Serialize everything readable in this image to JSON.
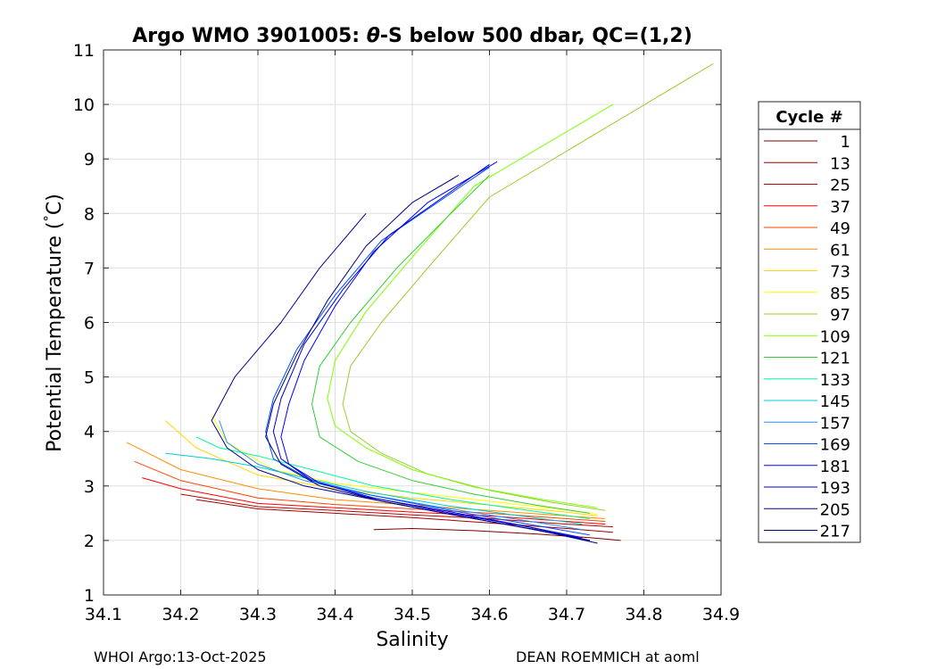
{
  "chart_data": {
    "type": "line",
    "title_prefix": "Argo WMO 3901005: ",
    "title_theta": "θ",
    "title_suffix": "-S below 500 dbar,  QC=(1,2)",
    "xlabel": "Salinity",
    "ylabel_main": "Potential Temperature (",
    "ylabel_deg": "°",
    "ylabel_end": "C)",
    "xlim": [
      34.1,
      34.9
    ],
    "ylim": [
      1,
      11
    ],
    "xticks": [
      34.1,
      34.2,
      34.3,
      34.4,
      34.5,
      34.6,
      34.7,
      34.8,
      34.9
    ],
    "xtick_labels": [
      "34.1",
      "34.2",
      "34.3",
      "34.4",
      "34.5",
      "34.6",
      "34.7",
      "34.8",
      "34.9"
    ],
    "yticks": [
      1,
      2,
      3,
      4,
      5,
      6,
      7,
      8,
      9,
      10,
      11
    ],
    "ytick_labels": [
      "1",
      "2",
      "3",
      "4",
      "5",
      "6",
      "7",
      "8",
      "9",
      "10",
      "11"
    ],
    "grid": true,
    "legend_position": "right",
    "legend_title": "Cycle #",
    "series": [
      {
        "name": "1",
        "color": "#800000",
        "points": [
          [
            34.77,
            2.0
          ],
          [
            34.73,
            2.05
          ],
          [
            34.66,
            2.12
          ],
          [
            34.58,
            2.18
          ],
          [
            34.5,
            2.22
          ],
          [
            34.45,
            2.2
          ]
        ]
      },
      {
        "name": "13",
        "color": "#a00000",
        "points": [
          [
            34.76,
            2.15
          ],
          [
            34.7,
            2.22
          ],
          [
            34.6,
            2.32
          ],
          [
            34.5,
            2.42
          ],
          [
            34.4,
            2.5
          ],
          [
            34.3,
            2.58
          ],
          [
            34.22,
            2.75
          ]
        ]
      },
      {
        "name": "25",
        "color": "#c00000",
        "points": [
          [
            34.76,
            2.25
          ],
          [
            34.7,
            2.3
          ],
          [
            34.6,
            2.4
          ],
          [
            34.5,
            2.47
          ],
          [
            34.4,
            2.55
          ],
          [
            34.3,
            2.62
          ],
          [
            34.2,
            2.85
          ]
        ]
      },
      {
        "name": "37",
        "color": "#ff0000",
        "points": [
          [
            34.75,
            2.3
          ],
          [
            34.7,
            2.35
          ],
          [
            34.6,
            2.45
          ],
          [
            34.5,
            2.52
          ],
          [
            34.4,
            2.6
          ],
          [
            34.3,
            2.68
          ],
          [
            34.2,
            2.95
          ],
          [
            34.15,
            3.15
          ]
        ]
      },
      {
        "name": "49",
        "color": "#ff4500",
        "points": [
          [
            34.75,
            2.35
          ],
          [
            34.7,
            2.4
          ],
          [
            34.6,
            2.5
          ],
          [
            34.5,
            2.58
          ],
          [
            34.4,
            2.66
          ],
          [
            34.3,
            2.78
          ],
          [
            34.2,
            3.1
          ],
          [
            34.14,
            3.45
          ]
        ]
      },
      {
        "name": "61",
        "color": "#ff8c00",
        "points": [
          [
            34.75,
            2.4
          ],
          [
            34.7,
            2.45
          ],
          [
            34.6,
            2.55
          ],
          [
            34.5,
            2.65
          ],
          [
            34.4,
            2.75
          ],
          [
            34.3,
            2.95
          ],
          [
            34.2,
            3.3
          ],
          [
            34.13,
            3.8
          ]
        ]
      },
      {
        "name": "73",
        "color": "#ffd700",
        "points": [
          [
            34.74,
            2.45
          ],
          [
            34.7,
            2.52
          ],
          [
            34.6,
            2.65
          ],
          [
            34.5,
            2.78
          ],
          [
            34.4,
            2.95
          ],
          [
            34.3,
            3.2
          ],
          [
            34.22,
            3.7
          ],
          [
            34.18,
            4.2
          ]
        ]
      },
      {
        "name": "85",
        "color": "#ffff00",
        "points": [
          [
            34.74,
            2.48
          ],
          [
            34.7,
            2.56
          ],
          [
            34.6,
            2.72
          ],
          [
            34.5,
            2.88
          ],
          [
            34.4,
            3.05
          ],
          [
            34.32,
            3.3
          ],
          [
            34.26,
            3.8
          ],
          [
            34.24,
            4.3
          ]
        ]
      },
      {
        "name": "97",
        "color": "#9acd32",
        "points": [
          [
            34.75,
            2.55
          ],
          [
            34.68,
            2.7
          ],
          [
            34.6,
            2.92
          ],
          [
            34.52,
            3.22
          ],
          [
            34.46,
            3.6
          ],
          [
            34.42,
            4.0
          ],
          [
            34.41,
            4.5
          ],
          [
            34.42,
            5.2
          ],
          [
            34.46,
            6.0
          ],
          [
            34.52,
            7.0
          ],
          [
            34.6,
            8.3
          ],
          [
            34.89,
            10.75
          ]
        ]
      },
      {
        "name": "109",
        "color": "#7fff00",
        "points": [
          [
            34.74,
            2.6
          ],
          [
            34.67,
            2.75
          ],
          [
            34.58,
            2.98
          ],
          [
            34.5,
            3.3
          ],
          [
            34.44,
            3.7
          ],
          [
            34.4,
            4.1
          ],
          [
            34.39,
            4.6
          ],
          [
            34.4,
            5.3
          ],
          [
            34.44,
            6.2
          ],
          [
            34.5,
            7.2
          ],
          [
            34.58,
            8.5
          ],
          [
            34.76,
            10.0
          ]
        ]
      },
      {
        "name": "121",
        "color": "#32cd32",
        "points": [
          [
            34.73,
            2.5
          ],
          [
            34.66,
            2.65
          ],
          [
            34.58,
            2.85
          ],
          [
            34.5,
            3.1
          ],
          [
            34.43,
            3.45
          ],
          [
            34.38,
            3.9
          ],
          [
            34.37,
            4.5
          ],
          [
            34.38,
            5.2
          ],
          [
            34.42,
            6.0
          ],
          [
            34.48,
            7.0
          ],
          [
            34.55,
            8.0
          ],
          [
            34.6,
            8.7
          ]
        ]
      },
      {
        "name": "133",
        "color": "#00fa9a",
        "points": [
          [
            34.73,
            2.4
          ],
          [
            34.65,
            2.55
          ],
          [
            34.55,
            2.75
          ],
          [
            34.45,
            3.0
          ],
          [
            34.37,
            3.3
          ],
          [
            34.3,
            3.55
          ],
          [
            34.25,
            3.7
          ],
          [
            34.22,
            3.9
          ]
        ]
      },
      {
        "name": "145",
        "color": "#00ced1",
        "points": [
          [
            34.72,
            2.3
          ],
          [
            34.64,
            2.45
          ],
          [
            34.54,
            2.65
          ],
          [
            34.44,
            2.9
          ],
          [
            34.36,
            3.15
          ],
          [
            34.3,
            3.35
          ],
          [
            34.24,
            3.5
          ],
          [
            34.18,
            3.6
          ]
        ]
      },
      {
        "name": "157",
        "color": "#1e90ff",
        "points": [
          [
            34.72,
            2.2
          ],
          [
            34.64,
            2.38
          ],
          [
            34.54,
            2.6
          ],
          [
            34.44,
            2.85
          ],
          [
            34.36,
            3.1
          ],
          [
            34.3,
            3.4
          ],
          [
            34.26,
            3.8
          ],
          [
            34.25,
            4.2
          ]
        ]
      },
      {
        "name": "169",
        "color": "#0050ff",
        "points": [
          [
            34.73,
            2.1
          ],
          [
            34.65,
            2.3
          ],
          [
            34.55,
            2.55
          ],
          [
            34.45,
            2.82
          ],
          [
            34.37,
            3.1
          ],
          [
            34.32,
            3.5
          ],
          [
            34.31,
            4.0
          ],
          [
            34.32,
            4.6
          ],
          [
            34.35,
            5.5
          ],
          [
            34.4,
            6.5
          ],
          [
            34.46,
            7.5
          ],
          [
            34.6,
            8.85
          ]
        ]
      },
      {
        "name": "181",
        "color": "#0000ff",
        "points": [
          [
            34.73,
            2.0
          ],
          [
            34.65,
            2.25
          ],
          [
            34.55,
            2.5
          ],
          [
            34.45,
            2.78
          ],
          [
            34.38,
            3.05
          ],
          [
            34.34,
            3.4
          ],
          [
            34.33,
            3.9
          ],
          [
            34.34,
            4.5
          ],
          [
            34.36,
            5.3
          ],
          [
            34.4,
            6.3
          ],
          [
            34.45,
            7.3
          ],
          [
            34.52,
            8.2
          ],
          [
            34.61,
            8.95
          ]
        ]
      },
      {
        "name": "193",
        "color": "#0000cd",
        "points": [
          [
            34.72,
            2.05
          ],
          [
            34.64,
            2.28
          ],
          [
            34.54,
            2.55
          ],
          [
            34.44,
            2.8
          ],
          [
            34.37,
            3.1
          ],
          [
            34.33,
            3.5
          ],
          [
            34.32,
            4.0
          ],
          [
            34.33,
            4.6
          ],
          [
            34.36,
            5.6
          ],
          [
            34.41,
            6.6
          ],
          [
            34.47,
            7.6
          ],
          [
            34.6,
            8.9
          ]
        ]
      },
      {
        "name": "205",
        "color": "#00008b",
        "points": [
          [
            34.73,
            2.0
          ],
          [
            34.65,
            2.22
          ],
          [
            34.55,
            2.48
          ],
          [
            34.45,
            2.75
          ],
          [
            34.36,
            3.0
          ],
          [
            34.3,
            3.3
          ],
          [
            34.26,
            3.7
          ],
          [
            34.24,
            4.2
          ],
          [
            34.27,
            5.0
          ],
          [
            34.33,
            6.0
          ],
          [
            34.38,
            7.0
          ],
          [
            34.44,
            8.0
          ]
        ]
      },
      {
        "name": "217",
        "color": "#00007a",
        "points": [
          [
            34.74,
            1.95
          ],
          [
            34.66,
            2.2
          ],
          [
            34.56,
            2.45
          ],
          [
            34.46,
            2.72
          ],
          [
            34.38,
            3.0
          ],
          [
            34.33,
            3.4
          ],
          [
            34.31,
            3.9
          ],
          [
            34.32,
            4.5
          ],
          [
            34.35,
            5.4
          ],
          [
            34.39,
            6.4
          ],
          [
            34.44,
            7.4
          ],
          [
            34.5,
            8.2
          ],
          [
            34.56,
            8.7
          ]
        ]
      }
    ]
  },
  "footer": {
    "left": "WHOI Argo:13-Oct-2025",
    "right": "DEAN ROEMMICH at aoml"
  }
}
